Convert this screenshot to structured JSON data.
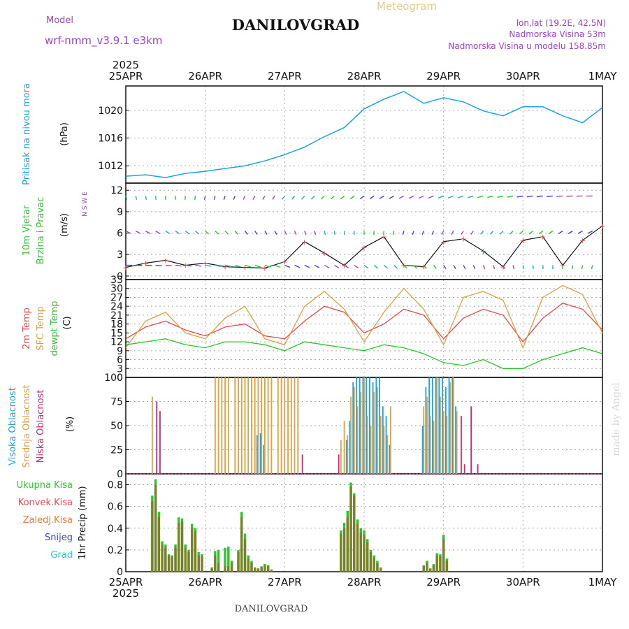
{
  "header": {
    "model_label": "Model",
    "model_name": "wrf-nmm_v3.9.1 e3km",
    "title": "DANILOVGRAD",
    "meteogram_label": "Meteogram",
    "lonlat": "lon,lat (19.2E, 42.5N)",
    "elevation": "Nadmorska Visina 53m",
    "model_elevation": "Nadmorska Visina u modelu 158.85m"
  },
  "footer": {
    "station": "DANILOVGRAD",
    "watermark": "made by Angel"
  },
  "time_axis": {
    "year": "2025",
    "labels": [
      "25APR",
      "26APR",
      "27APR",
      "28APR",
      "29APR",
      "30APR",
      "1MAY"
    ]
  },
  "colors": {
    "pressure": "#1aa3e8",
    "temp2m": "#e84848",
    "sfc": "#e0a040",
    "dew": "#28c828",
    "high_cloud": "#1aa3e8",
    "mid_cloud": "#e0a040",
    "low_cloud": "#c8287c",
    "total_precip": "#28c828",
    "conv_precip": "#e84848",
    "model": "#a040d0"
  },
  "chart_data": [
    {
      "type": "line",
      "id": "pressure",
      "title": "Pritisak na nivou mora",
      "ylabel": "(hPa)",
      "ylim": [
        1009.5,
        1023.5
      ],
      "yticks": [
        1012,
        1016,
        1020
      ],
      "x_unit": "hours from 25APR 00",
      "x": [
        0,
        6,
        12,
        18,
        24,
        30,
        36,
        42,
        48,
        54,
        60,
        66,
        72,
        78,
        84,
        90,
        96,
        102,
        108,
        114,
        120,
        126,
        132,
        138,
        144
      ],
      "values": [
        1010.5,
        1010.7,
        1010.3,
        1010.9,
        1011.2,
        1011.6,
        1012.0,
        1012.7,
        1013.6,
        1014.7,
        1016.2,
        1017.5,
        1020.2,
        1021.6,
        1022.7,
        1021.0,
        1021.8,
        1021.2,
        1019.9,
        1019.2,
        1020.5,
        1020.5,
        1019.2,
        1018.2,
        1020.4
      ]
    },
    {
      "type": "line",
      "id": "wind",
      "title_line1": "10m Vjetar",
      "title_line2": "Brzina i Pravac",
      "ylabel": "(m/s)",
      "compass": "N S W E",
      "ylim": [
        -0.5,
        13
      ],
      "yticks": [
        0,
        3,
        6,
        9,
        12
      ],
      "x": [
        0,
        6,
        12,
        18,
        24,
        30,
        36,
        42,
        48,
        54,
        60,
        66,
        72,
        78,
        84,
        90,
        96,
        102,
        108,
        114,
        120,
        126,
        132,
        138,
        144
      ],
      "values": [
        1.2,
        1.8,
        2.2,
        1.5,
        1.8,
        1.3,
        1.2,
        1.1,
        2.0,
        4.8,
        3.2,
        1.5,
        4.0,
        5.5,
        1.5,
        1.3,
        4.8,
        5.2,
        3.5,
        1.3,
        5.0,
        5.5,
        1.5,
        5.0,
        7.0
      ]
    },
    {
      "type": "line",
      "id": "temperature",
      "title": "2m Temp",
      "title2": "SFC Temp",
      "title3": "dewpt Temp",
      "ylabel": "(C)",
      "ylim": [
        0,
        33
      ],
      "yticks": [
        0,
        3,
        6,
        9,
        12,
        15,
        18,
        21,
        24,
        27,
        30,
        33
      ],
      "x": [
        0,
        6,
        12,
        18,
        24,
        30,
        36,
        42,
        48,
        54,
        60,
        66,
        72,
        78,
        84,
        90,
        96,
        102,
        108,
        114,
        120,
        126,
        132,
        138,
        144
      ],
      "series": [
        {
          "name": "2m Temp",
          "values": [
            13,
            17,
            19,
            16,
            14,
            17,
            18,
            14,
            13,
            19,
            24,
            22,
            15,
            18,
            23,
            21,
            13,
            20,
            23,
            21,
            12,
            20,
            25,
            23,
            16
          ]
        },
        {
          "name": "SFC Temp",
          "values": [
            10,
            19,
            22,
            15,
            13,
            20,
            24,
            13,
            11,
            24,
            29,
            23,
            12,
            22,
            30,
            23,
            11,
            27,
            29,
            26,
            10,
            27,
            31,
            28,
            15
          ]
        },
        {
          "name": "dewpt Temp",
          "values": [
            11,
            12,
            13,
            11,
            10,
            12,
            12,
            11,
            9,
            12,
            11,
            10,
            9,
            11,
            10,
            8,
            5,
            4,
            6,
            3,
            3,
            6,
            8,
            10,
            8
          ]
        }
      ]
    },
    {
      "type": "bar",
      "id": "clouds",
      "series_names": [
        "Visoka Oblacnost",
        "Srednja Oblacnost",
        "Niska Oblacnost"
      ],
      "ylabel": "(%)",
      "ylim": [
        0,
        100
      ],
      "yticks": [
        0,
        25,
        50,
        75,
        100
      ],
      "x": [
        8,
        9,
        10,
        12,
        14,
        16,
        17,
        18,
        19,
        20,
        21,
        22,
        23,
        24,
        25,
        26,
        27,
        28,
        29,
        30,
        31,
        32,
        33,
        34,
        35,
        36,
        37,
        38,
        39,
        40,
        41,
        42,
        43,
        44,
        46,
        47,
        48,
        49,
        50,
        51,
        52,
        53,
        54,
        55,
        56,
        57,
        58,
        64,
        65,
        66,
        67,
        68,
        69,
        70,
        71,
        72,
        73,
        74,
        75,
        76,
        77,
        78,
        79,
        80,
        82,
        83,
        84,
        90,
        91,
        92,
        93,
        94,
        95,
        96,
        97,
        98,
        99,
        100,
        101,
        102,
        104,
        106
      ],
      "series": [
        {
          "name": "Visoka Oblacnost",
          "values": [
            0,
            0,
            0,
            0,
            0,
            0,
            0,
            0,
            0,
            0,
            0,
            0,
            0,
            0,
            0,
            0,
            0,
            0,
            0,
            0,
            0,
            0,
            0,
            0,
            0,
            0,
            0,
            0,
            0,
            40,
            42,
            30,
            0,
            0,
            0,
            0,
            0,
            0,
            0,
            0,
            0,
            0,
            0,
            0,
            0,
            0,
            0,
            0,
            0,
            0,
            35,
            55,
            95,
            100,
            100,
            100,
            100,
            100,
            95,
            100,
            100,
            70,
            60,
            30,
            0,
            0,
            0,
            50,
            90,
            100,
            100,
            100,
            100,
            100,
            90,
            100,
            100,
            70,
            0,
            0,
            0,
            0
          ]
        },
        {
          "name": "Srednja Oblacnost",
          "values": [
            80,
            0,
            0,
            0,
            0,
            0,
            0,
            0,
            0,
            0,
            0,
            0,
            0,
            0,
            0,
            0,
            100,
            100,
            100,
            100,
            100,
            0,
            100,
            100,
            100,
            100,
            100,
            100,
            100,
            100,
            100,
            100,
            100,
            100,
            100,
            100,
            100,
            100,
            100,
            100,
            100,
            0,
            0,
            0,
            0,
            0,
            0,
            0,
            35,
            55,
            40,
            80,
            90,
            70,
            85,
            100,
            60,
            50,
            85,
            90,
            60,
            50,
            40,
            70,
            0,
            0,
            0,
            70,
            80,
            60,
            55,
            100,
            80,
            65,
            60,
            95,
            100,
            65,
            0,
            0,
            0,
            0
          ]
        },
        {
          "name": "Niska Oblacnost",
          "values": [
            0,
            75,
            65,
            0,
            0,
            0,
            0,
            0,
            0,
            0,
            0,
            0,
            0,
            0,
            0,
            0,
            0,
            0,
            0,
            0,
            0,
            0,
            0,
            0,
            0,
            0,
            0,
            0,
            0,
            0,
            0,
            0,
            0,
            0,
            0,
            0,
            0,
            0,
            0,
            0,
            0,
            20,
            0,
            0,
            0,
            0,
            0,
            20,
            0,
            0,
            0,
            0,
            0,
            0,
            0,
            0,
            0,
            0,
            0,
            0,
            0,
            0,
            0,
            0,
            0,
            0,
            0,
            0,
            0,
            0,
            0,
            0,
            0,
            0,
            0,
            0,
            0,
            0,
            60,
            10,
            70,
            10
          ]
        }
      ]
    },
    {
      "type": "bar",
      "id": "precip",
      "series_names": [
        "Ukupna Kisa",
        "Konvek.Kisa",
        "Zaledj.Kisa",
        "Snijeg",
        "Grad"
      ],
      "ylabel": "1hr Precip (mm)",
      "ylim": [
        0,
        0.9
      ],
      "yticks": [
        0,
        0.2,
        0.4,
        0.6,
        0.8
      ],
      "x": [
        8,
        9,
        10,
        11,
        12,
        13,
        14,
        15,
        16,
        17,
        18,
        19,
        20,
        21,
        22,
        23,
        26,
        27,
        28,
        30,
        31,
        32,
        34,
        35,
        36,
        37,
        38,
        39,
        40,
        41,
        42,
        43,
        44,
        65,
        66,
        67,
        68,
        69,
        70,
        71,
        72,
        73,
        74,
        75,
        76,
        77,
        90,
        91,
        92,
        93,
        94,
        95,
        96,
        97
      ],
      "series": [
        {
          "name": "Ukupna Kisa",
          "values": [
            0.7,
            0.85,
            0.55,
            0.28,
            0.25,
            0.16,
            0.15,
            0.25,
            0.5,
            0.49,
            0.25,
            0.2,
            0.44,
            0.4,
            0.18,
            0.16,
            0.04,
            0.19,
            0.2,
            0.22,
            0.23,
            0.1,
            0.2,
            0.55,
            0.35,
            0.15,
            0.1,
            0.04,
            0.03,
            0.05,
            0.07,
            0.06,
            0.02,
            0.38,
            0.45,
            0.56,
            0.82,
            0.72,
            0.48,
            0.4,
            0.38,
            0.3,
            0.2,
            0.15,
            0.1,
            0.04,
            0.06,
            0.1,
            0.03,
            0.07,
            0.17,
            0.16,
            0.34,
            0.12
          ]
        },
        {
          "name": "Konvek.Kisa",
          "values": [
            0.65,
            0.8,
            0.5,
            0.25,
            0.22,
            0.15,
            0.14,
            0.22,
            0.45,
            0.46,
            0.22,
            0.18,
            0.4,
            0.37,
            0.15,
            0.15,
            0.03,
            0.15,
            0.08,
            0.05,
            0.05,
            0.08,
            0.18,
            0.5,
            0.3,
            0.12,
            0.08,
            0.03,
            0.03,
            0.04,
            0.06,
            0.05,
            0.02,
            0.35,
            0.4,
            0.5,
            0.78,
            0.7,
            0.44,
            0.36,
            0.34,
            0.27,
            0.18,
            0.13,
            0.08,
            0.03,
            0.05,
            0.08,
            0.03,
            0.06,
            0.15,
            0.14,
            0.3,
            0.1
          ]
        }
      ]
    }
  ]
}
